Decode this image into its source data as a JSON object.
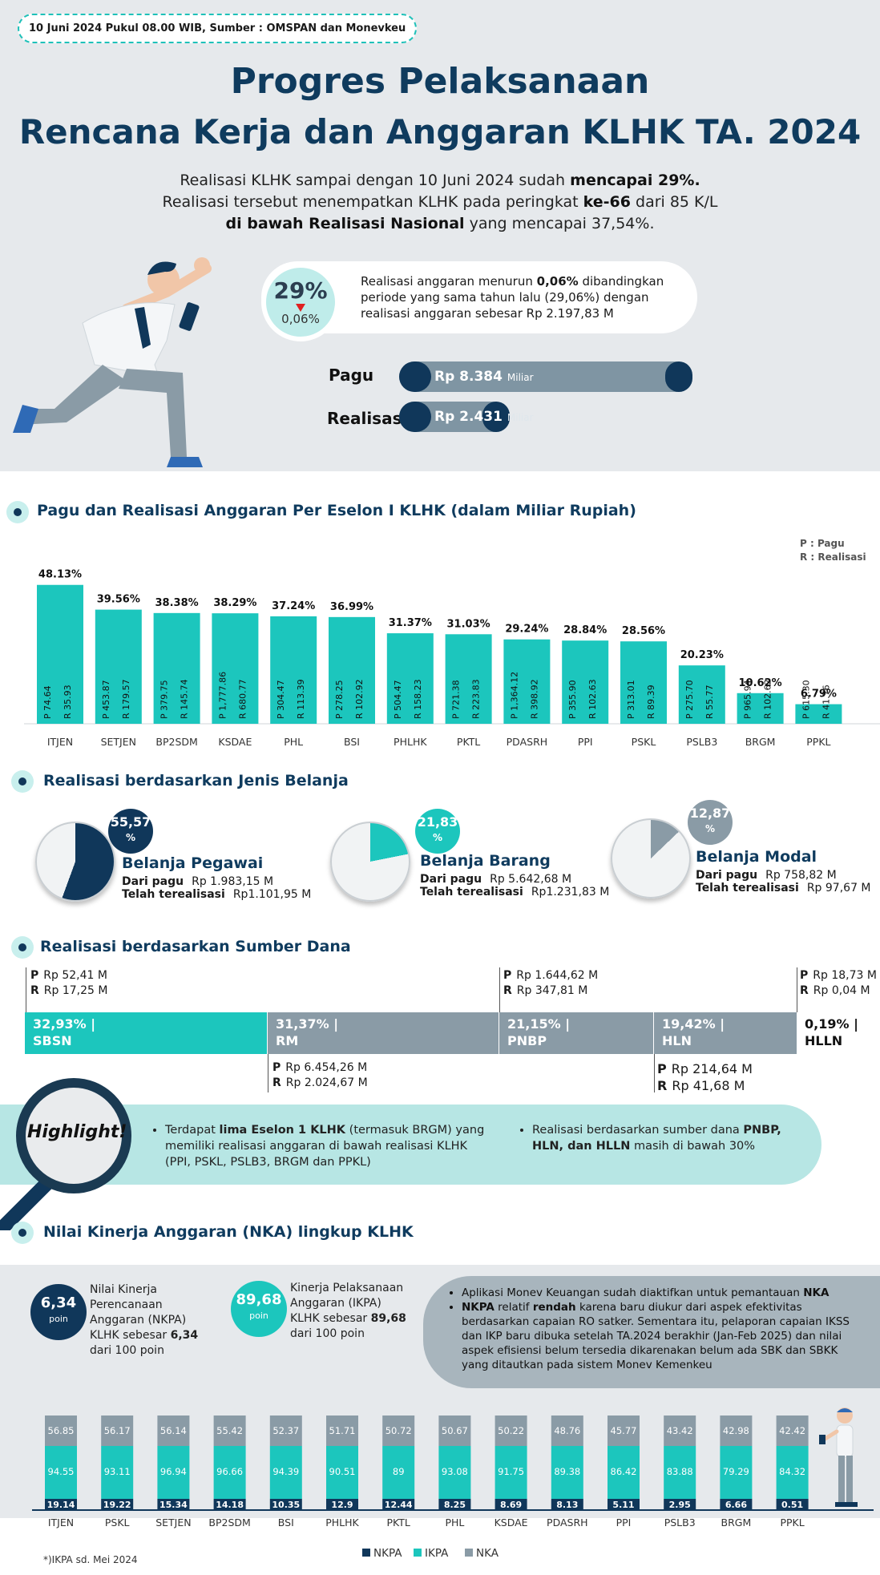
{
  "header": {
    "source": "10 Juni 2024 Pukul 08.00 WIB, Sumber : OMSPAN dan Monevkeu",
    "title_line1": "Progres Pelaksanaan",
    "title_line2": "Rencana Kerja dan Anggaran KLHK TA. 2024"
  },
  "intro": {
    "line1_a": "Realisasi KLHK sampai dengan 10 Juni 2024 sudah ",
    "line1_b": "mencapai 29%.",
    "line2_a": "Realisasi tersebut menempatkan KLHK pada peringkat ",
    "line2_b": "ke-66",
    "line2_c": " dari 85 K/L",
    "line3_a": "di bawah Realisasi Nasional",
    "line3_b": " yang mencapai 37,54%."
  },
  "summary": {
    "percent": "29%",
    "change": "0,06%",
    "text_a": "Realisasi  anggaran menurun ",
    "text_b": "0,06%",
    "text_c": " dibandingkan periode yang sama tahun lalu (29,06%) dengan realisasi anggaran sebesar Rp 2.197,83 M",
    "pagu_label": "Pagu",
    "pagu_value": "Rp 8.384",
    "pagu_unit": "Miliar",
    "realisasi_label": "Realisasi",
    "realisasi_value": "Rp 2.431",
    "realisasi_unit": "Miliar",
    "realisasi_fraction": 0.29
  },
  "sections": {
    "eselon": "Pagu dan Realisasi Anggaran Per Eselon I KLHK (dalam Miliar Rupiah)",
    "jenis": "Realisasi berdasarkan Jenis Belanja",
    "sumber": "Realisasi berdasarkan Sumber Dana",
    "nka": "Nilai Kinerja Anggaran (NKA) lingkup KLHK"
  },
  "legend_pr": {
    "p": "P : Pagu",
    "r": "R : Realisasi"
  },
  "chart_data": [
    {
      "type": "bar",
      "categories": [
        "ITJEN",
        "SETJEN",
        "BP2SDM",
        "KSDAE",
        "PHL",
        "BSI",
        "PHLHK",
        "PKTL",
        "PDASRH",
        "PPI",
        "PSKL",
        "PSLB3",
        "BRGM",
        "PPKL"
      ],
      "percent_labels": [
        "48.13%",
        "39.56%",
        "38.38%",
        "38.29%",
        "37.24%",
        "36.99%",
        "31.37%",
        "31.03%",
        "29.24%",
        "28.84%",
        "28.56%",
        "20.23%",
        "10.62%",
        "6.79%"
      ],
      "values": [
        48.13,
        39.56,
        38.38,
        38.29,
        37.24,
        36.99,
        31.37,
        31.03,
        29.24,
        28.84,
        28.56,
        20.23,
        10.62,
        6.79
      ],
      "pagu": [
        "74.64",
        "453.87",
        "379.75",
        "1,777.86",
        "304.47",
        "278.25",
        "504.47",
        "721.38",
        "1,364.12",
        "355.90",
        "313.01",
        "275.70",
        "965.94",
        "615.30"
      ],
      "realisasi": [
        "35.93",
        "179.57",
        "145.74",
        "680.77",
        "113.39",
        "102.92",
        "158.23",
        "223.83",
        "398.92",
        "102.63",
        "89.39",
        "55.77",
        "102.62",
        "41.76"
      ],
      "p_tag": "P",
      "r_tag": "R",
      "color": "#1cc6bd"
    },
    {
      "type": "bar",
      "stacked": true,
      "categories": [
        "ITJEN",
        "PSKL",
        "SETJEN",
        "BP2SDM",
        "BSI",
        "PHLHK",
        "PKTL",
        "PHL",
        "KSDAE",
        "PDASRH",
        "PPI",
        "PSLB3",
        "BRGM",
        "PPKL"
      ],
      "series": [
        {
          "name": "NKPA",
          "color": "#10375a",
          "values": [
            19.14,
            19.22,
            15.34,
            14.18,
            10.35,
            12.9,
            12.44,
            8.25,
            8.69,
            8.13,
            5.11,
            2.95,
            6.66,
            0.51
          ]
        },
        {
          "name": "IKPA",
          "color": "#1cc6bd",
          "values": [
            94.55,
            93.11,
            96.94,
            96.66,
            94.39,
            90.51,
            89,
            93.08,
            91.75,
            89.38,
            86.42,
            83.88,
            79.29,
            84.32
          ]
        },
        {
          "name": "NKA",
          "color": "#8a9ba6",
          "values": [
            56.85,
            56.17,
            56.14,
            55.42,
            52.37,
            51.71,
            50.72,
            50.67,
            50.22,
            48.76,
            45.77,
            43.42,
            42.98,
            42.42
          ]
        }
      ]
    }
  ],
  "belanja": [
    {
      "pct": "55,57",
      "sign": "%",
      "fraction": 0.5557,
      "color": "#10375a",
      "name": "Belanja Pegawai",
      "pagu_label": "Dari pagu",
      "pagu": "Rp 1.983,15 M",
      "real_label": "Telah terealisasi",
      "real": "Rp1.101,95 M"
    },
    {
      "pct": "21,83",
      "sign": "%",
      "fraction": 0.2183,
      "color": "#1cc6bd",
      "name": "Belanja Barang",
      "pagu_label": "Dari pagu",
      "pagu": "Rp 5.642,68 M",
      "real_label": "Telah terealisasi",
      "real": "Rp1.231,83 M"
    },
    {
      "pct": "12,87",
      "sign": "%",
      "fraction": 0.1287,
      "color": "#8a9ba6",
      "name": "Belanja Modal",
      "pagu_label": "Dari pagu",
      "pagu": "Rp  758,82  M",
      "real_label": "Telah terealisasi",
      "real": "Rp 97,67 M"
    }
  ],
  "dana": {
    "segments": [
      {
        "pct": "32,93% |",
        "name": "SBSN"
      },
      {
        "pct": "31,37% |",
        "name": "RM"
      },
      {
        "pct": "21,15% |",
        "name": "PNBP"
      },
      {
        "pct": "19,42% |",
        "name": "HLN"
      },
      {
        "pct": "0,19% |",
        "name": "HLLN"
      }
    ],
    "sbsn": {
      "p": "Rp 52,41 M",
      "r": "Rp 17,25 M"
    },
    "rm": {
      "p": "Rp  6.454,26 M",
      "r": "Rp  2.024,67 M"
    },
    "pnbp": {
      "p": "Rp 1.644,62  M",
      "r": "Rp     347,81 M"
    },
    "hln": {
      "p": "Rp  214,64 M",
      "r": "Rp    41,68 M"
    },
    "hlln": {
      "p": "Rp 18,73 M",
      "r": "Rp 0,04 M"
    },
    "p_tag": "P",
    "r_tag": "R"
  },
  "highlight": {
    "label": "Highlight!",
    "item1_a": "Terdapat ",
    "item1_b": "lima  Eselon 1 KLHK",
    "item1_c": " (termasuk BRGM) yang memiliki realisasi anggaran  di bawah realisasi KLHK (PPI, PSKL, PSLB3, BRGM dan PPKL)",
    "item2_a": "Realisasi berdasarkan sumber dana ",
    "item2_b": "PNBP, HLN, dan HLLN",
    "item2_c": " masih di bawah 30%"
  },
  "nka": {
    "nkpa_value": "6,34",
    "nkpa_unit": "poin",
    "nkpa_text_a": "Nilai Kinerja Perencanaan Anggaran (NKPA) KLHK  sebesar ",
    "nkpa_text_b": "6,34",
    "nkpa_text_c": " dari 100 poin",
    "ikpa_value": "89,68",
    "ikpa_unit": "poin",
    "ikpa_text_a": "Kinerja Pelaksanaan Anggaran (IKPA) KLHK sebesar ",
    "ikpa_text_b": "89,68",
    "ikpa_text_c": " dari 100 poin",
    "box1_a": "Aplikasi Monev Keuangan sudah diaktifkan untuk pemantauan ",
    "box1_b": "NKA",
    "box2_a": "NKPA",
    "box2_b": " relatif ",
    "box2_c": "rendah",
    "box2_d": " karena baru diukur dari aspek efektivitas berdasarkan capaian RO satker. Sementara itu, pelaporan capaian IKSS dan IKP baru dibuka setelah TA.2024 berakhir (Jan-Feb 2025) dan  nilai aspek efisiensi belum tersedia dikarenakan belum ada SBK dan SBKK yang ditautkan pada sistem Monev Kemenkeu"
  },
  "footer": {
    "note": "*)IKPA sd. Mei 2024"
  }
}
